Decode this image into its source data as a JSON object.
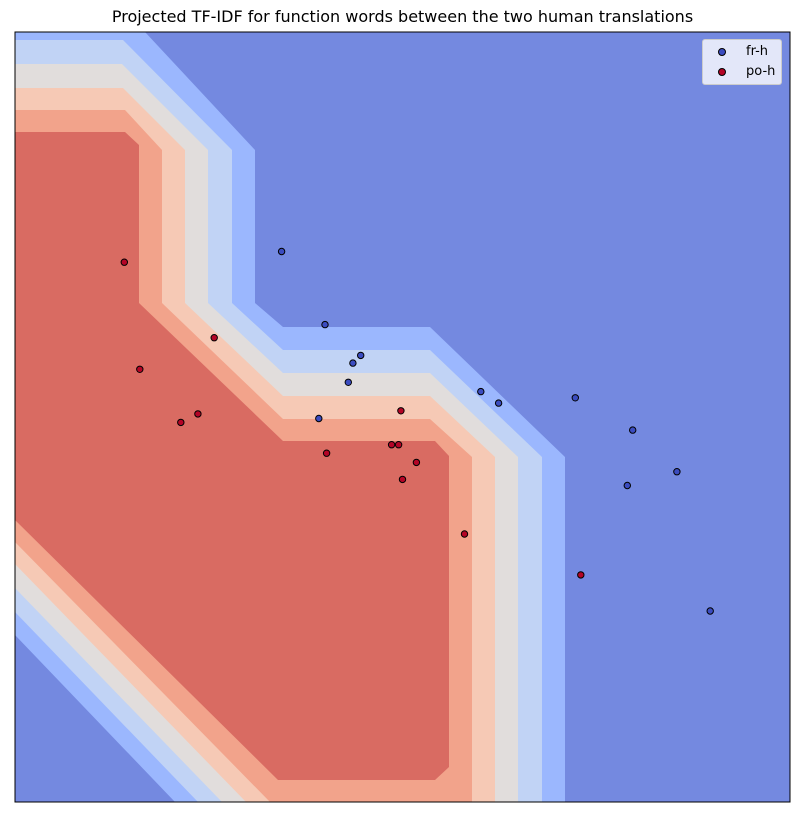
{
  "chart_data": {
    "type": "scatter",
    "title": "Projected TF-IDF for function words between the two human translations",
    "xlabel": "",
    "ylabel": "",
    "xlim": [
      0,
      1
    ],
    "ylim": [
      0,
      1
    ],
    "axis_ticks": "hidden",
    "grid": false,
    "legend_position": "top-right",
    "background": "decision-boundary contour (blue = fr-h region, red = po-h region)",
    "series": [
      {
        "name": "fr-h",
        "color": "#3b4cc0",
        "points": [
          {
            "x": 0.344,
            "y": 0.715
          },
          {
            "x": 0.4,
            "y": 0.62
          },
          {
            "x": 0.446,
            "y": 0.58
          },
          {
            "x": 0.43,
            "y": 0.545
          },
          {
            "x": 0.436,
            "y": 0.57
          },
          {
            "x": 0.392,
            "y": 0.498
          },
          {
            "x": 0.601,
            "y": 0.533
          },
          {
            "x": 0.624,
            "y": 0.518
          },
          {
            "x": 0.723,
            "y": 0.525
          },
          {
            "x": 0.797,
            "y": 0.483
          },
          {
            "x": 0.854,
            "y": 0.429
          },
          {
            "x": 0.79,
            "y": 0.411
          },
          {
            "x": 0.897,
            "y": 0.248
          }
        ]
      },
      {
        "name": "po-h",
        "color": "#b40426",
        "points": [
          {
            "x": 0.141,
            "y": 0.701
          },
          {
            "x": 0.257,
            "y": 0.603
          },
          {
            "x": 0.161,
            "y": 0.562
          },
          {
            "x": 0.236,
            "y": 0.504
          },
          {
            "x": 0.214,
            "y": 0.493
          },
          {
            "x": 0.498,
            "y": 0.508
          },
          {
            "x": 0.486,
            "y": 0.464
          },
          {
            "x": 0.495,
            "y": 0.464
          },
          {
            "x": 0.402,
            "y": 0.453
          },
          {
            "x": 0.518,
            "y": 0.441
          },
          {
            "x": 0.5,
            "y": 0.419
          },
          {
            "x": 0.58,
            "y": 0.348
          },
          {
            "x": 0.73,
            "y": 0.295
          }
        ]
      }
    ]
  },
  "legend": {
    "items": [
      {
        "label": "fr-h",
        "color": "#3b4cc0"
      },
      {
        "label": "po-h",
        "color": "#b40426"
      }
    ]
  }
}
